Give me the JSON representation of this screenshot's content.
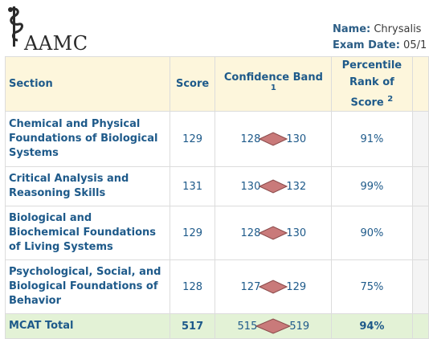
{
  "header": {
    "logo_text": "AAMC",
    "name_label": "Name:",
    "name_value": "Chrysalis",
    "exam_date_label": "Exam Date:",
    "exam_date_value": "05/1"
  },
  "table": {
    "columns": {
      "section": "Section",
      "score": "Score",
      "confidence_band": "Confidence Band",
      "confidence_note": "1",
      "percentile_line1": "Percentile",
      "percentile_line2": "Rank of",
      "percentile_line3": "Score",
      "percentile_note": "2"
    },
    "rows": [
      {
        "section": "Chemical and Physical Foundations of Biological Systems",
        "score": "129",
        "band_low": "128",
        "band_high": "130",
        "percentile": "91%"
      },
      {
        "section": "Critical Analysis and Reasoning Skills",
        "score": "131",
        "band_low": "130",
        "band_high": "132",
        "percentile": "99%"
      },
      {
        "section": "Biological and Biochemical Foundations of Living Systems",
        "score": "129",
        "band_low": "128",
        "band_high": "130",
        "percentile": "90%"
      },
      {
        "section": "Psychological, Social, and Biological Foundations of Behavior",
        "score": "128",
        "band_low": "127",
        "band_high": "129",
        "percentile": "75%"
      }
    ],
    "total": {
      "section": "MCAT Total",
      "score": "517",
      "band_low": "515",
      "band_high": "519",
      "percentile": "94%"
    }
  },
  "colors": {
    "header_bg": "#fdf6dc",
    "total_bg": "#e3f2d6",
    "text_blue": "#1e5a8a",
    "diamond_fill": "#c97a7a"
  }
}
